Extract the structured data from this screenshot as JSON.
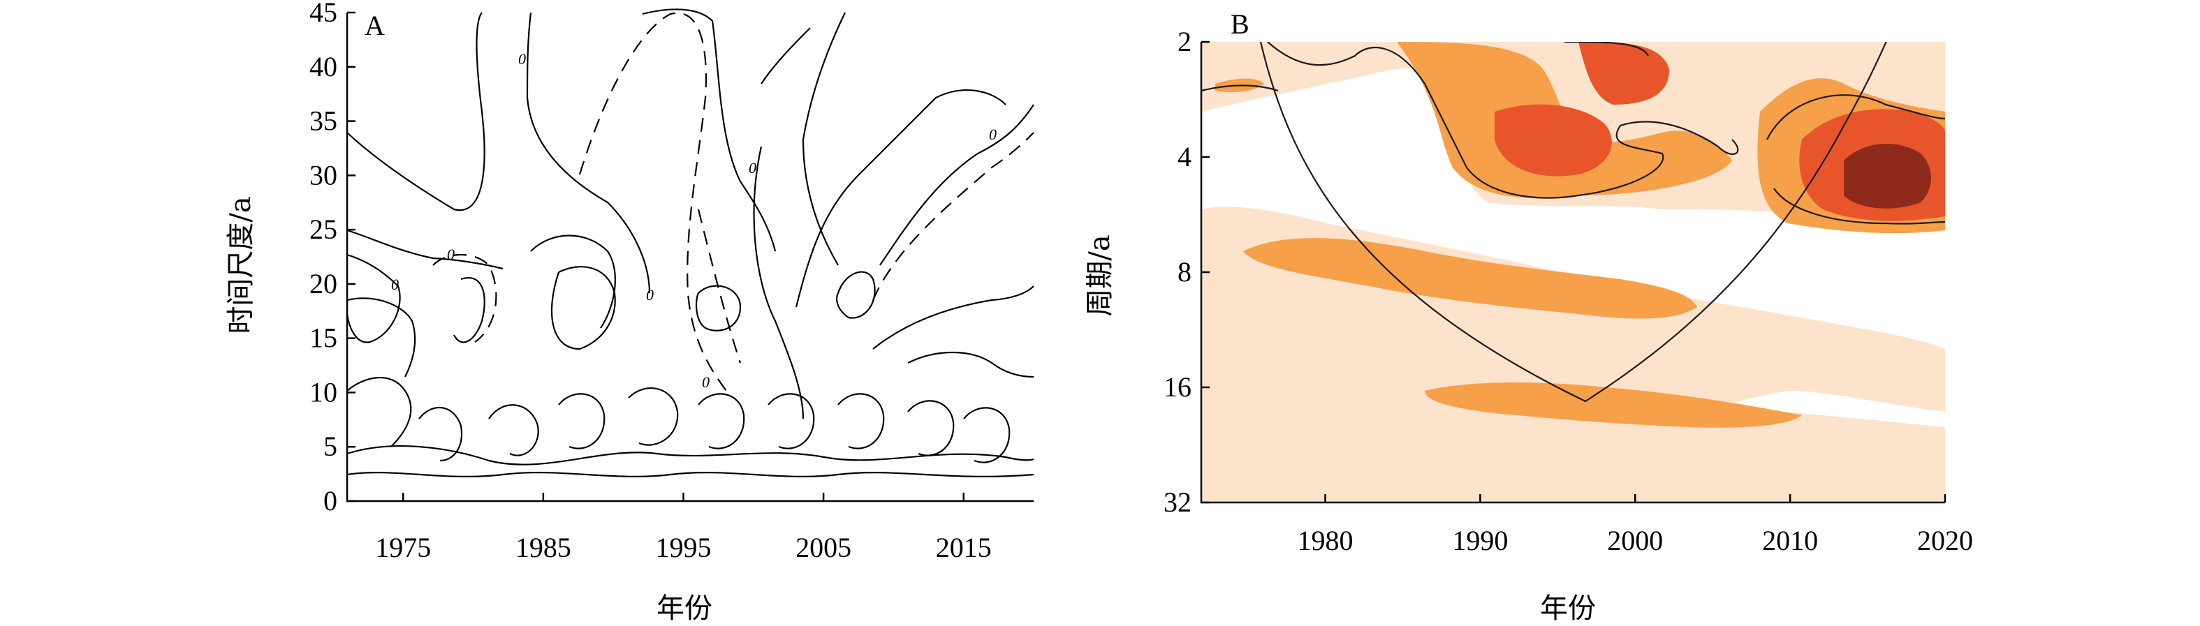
{
  "chart_data": [
    {
      "type": "contour",
      "panel_label": "A",
      "xlabel": "年份",
      "ylabel": "时间尺度/a",
      "x_ticks": [
        1975,
        1985,
        1995,
        2005,
        2015
      ],
      "y_ticks": [
        0,
        5,
        10,
        15,
        20,
        25,
        30,
        35,
        40,
        45
      ],
      "xlim": [
        1971,
        2020
      ],
      "ylim": [
        0,
        45
      ],
      "contour_labels": [
        "0",
        "0",
        "0",
        "0",
        "0",
        "0",
        "0"
      ],
      "line_color": "#000000"
    },
    {
      "type": "heatmap",
      "panel_label": "B",
      "xlabel": "年份",
      "ylabel": "周期/a",
      "x_ticks": [
        1980,
        1990,
        2000,
        2010,
        2020
      ],
      "y_ticks": [
        2,
        4,
        8,
        16,
        32
      ],
      "y_scale": "log2",
      "xlim": [
        1972,
        2020
      ],
      "ylim": [
        2,
        32
      ],
      "colors": {
        "level1": "#fde3cb",
        "level2": "#f7a04a",
        "level3": "#e8552a",
        "level4": "#8e2a1c"
      }
    }
  ]
}
